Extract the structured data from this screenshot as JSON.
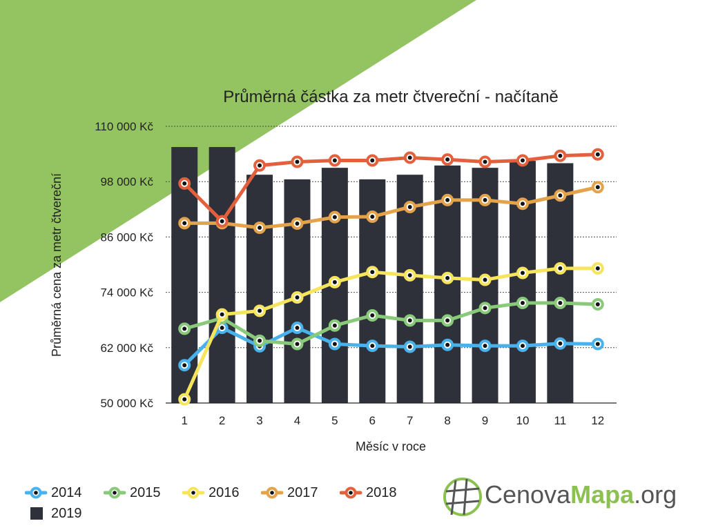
{
  "colors": {
    "background_triangle": "#94c462",
    "bar": "#2e313a",
    "s2014": "#4ab2ea",
    "s2015": "#89c97a",
    "s2016": "#f6e45c",
    "s2017": "#e4a24a",
    "s2018": "#e3603d"
  },
  "chart_data": {
    "type": "line",
    "title": "Průměrná částka za metr čtvereční - načítaně",
    "xlabel": "Měsíc v roce",
    "ylabel": "Průměrná cena za metr čtvereční",
    "categories": [
      "1",
      "2",
      "3",
      "4",
      "5",
      "6",
      "7",
      "8",
      "9",
      "10",
      "11",
      "12"
    ],
    "y_ticks": [
      "50 000 Kč",
      "62 000 Kč",
      "74 000 Kč",
      "86 000 Kč",
      "98 000 Kč",
      "110 000 Kč"
    ],
    "ylim": [
      50000,
      110000
    ],
    "y_tick_values": [
      50000,
      62000,
      74000,
      86000,
      98000,
      110000
    ],
    "grid": "horizontal dotted",
    "legend_position": "bottom-left",
    "bars": {
      "name": "2019",
      "values": [
        105500,
        105500,
        99500,
        98500,
        101000,
        98500,
        99500,
        101500,
        101000,
        102500,
        102000,
        null
      ]
    },
    "series": [
      {
        "name": "2014",
        "values": [
          58200,
          66300,
          62300,
          66300,
          62800,
          62400,
          62200,
          62600,
          62400,
          62400,
          62900,
          62800
        ]
      },
      {
        "name": "2015",
        "values": [
          66100,
          68400,
          63500,
          62800,
          66800,
          69000,
          67900,
          67900,
          70600,
          71700,
          71700,
          71400
        ]
      },
      {
        "name": "2016",
        "values": [
          50800,
          69200,
          70000,
          72900,
          76200,
          78400,
          77700,
          77100,
          76700,
          78200,
          79200,
          79200
        ]
      },
      {
        "name": "2017",
        "values": [
          89000,
          89000,
          88000,
          88900,
          90300,
          90400,
          92500,
          94000,
          94000,
          93200,
          95000,
          96800
        ]
      },
      {
        "name": "2018",
        "values": [
          97600,
          89400,
          101500,
          102300,
          102600,
          102600,
          103200,
          102800,
          102300,
          102600,
          103600,
          103900
        ]
      }
    ]
  },
  "legend": {
    "items": [
      {
        "label": "2014"
      },
      {
        "label": "2015"
      },
      {
        "label": "2016"
      },
      {
        "label": "2017"
      },
      {
        "label": "2018"
      },
      {
        "label": "2019"
      }
    ]
  },
  "logo": {
    "part1": "Cenova",
    "part2": "Mapa",
    "part3": ".org"
  }
}
